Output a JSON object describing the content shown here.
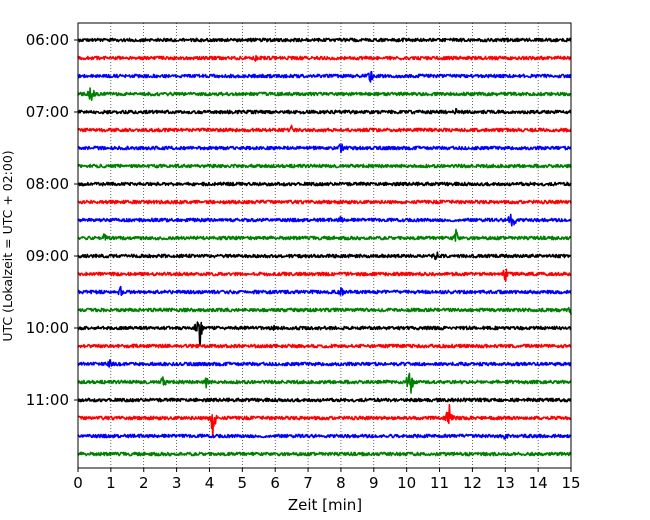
{
  "chart_data": {
    "type": "line",
    "xlabel": "Zeit  [min]",
    "ylabel": "UTC (Lokalzeit = UTC + 02:00)",
    "xlim": [
      0,
      15
    ],
    "x_ticks": [
      "0",
      "1",
      "2",
      "3",
      "4",
      "5",
      "6",
      "7",
      "8",
      "9",
      "10",
      "11",
      "12",
      "13",
      "14",
      "15"
    ],
    "y_ticks": [
      "06:00",
      "07:00",
      "08:00",
      "09:00",
      "10:00",
      "11:00"
    ],
    "start_time": "06:00",
    "row_interval_minutes": 15,
    "vertical_grid": "dotted",
    "trace_colors": [
      "#000000",
      "#ff0000",
      "#0000ff",
      "#008000"
    ],
    "events": [
      {
        "row": 1,
        "minute": 5.4,
        "amplitude": 0.25
      },
      {
        "row": 2,
        "minute": 8.9,
        "amplitude": 0.4
      },
      {
        "row": 3,
        "minute": 0.4,
        "amplitude": 0.6
      },
      {
        "row": 4,
        "minute": 11.5,
        "amplitude": 0.25
      },
      {
        "row": 5,
        "minute": 6.5,
        "amplitude": 0.25
      },
      {
        "row": 6,
        "minute": 8.0,
        "amplitude": 0.35
      },
      {
        "row": 10,
        "minute": 8.0,
        "amplitude": 0.3
      },
      {
        "row": 10,
        "minute": 13.2,
        "amplitude": 0.95
      },
      {
        "row": 11,
        "minute": 0.8,
        "amplitude": 0.4
      },
      {
        "row": 11,
        "minute": 11.5,
        "amplitude": 0.55
      },
      {
        "row": 12,
        "minute": 10.9,
        "amplitude": 0.35
      },
      {
        "row": 13,
        "minute": 13.0,
        "amplitude": 0.5
      },
      {
        "row": 14,
        "minute": 1.3,
        "amplitude": 0.35
      },
      {
        "row": 14,
        "minute": 8.0,
        "amplitude": 0.35
      },
      {
        "row": 15,
        "minute": 15.0,
        "amplitude": 0.35
      },
      {
        "row": 16,
        "minute": 3.7,
        "amplitude": 1.3
      },
      {
        "row": 16,
        "minute": 6.0,
        "amplitude": 0.3
      },
      {
        "row": 18,
        "minute": 1.0,
        "amplitude": 0.4
      },
      {
        "row": 19,
        "minute": 2.6,
        "amplitude": 0.45
      },
      {
        "row": 19,
        "minute": 3.9,
        "amplitude": 0.45
      },
      {
        "row": 19,
        "minute": 10.1,
        "amplitude": 1.0
      },
      {
        "row": 21,
        "minute": 4.1,
        "amplitude": 1.1
      },
      {
        "row": 21,
        "minute": 11.3,
        "amplitude": 1.0
      },
      {
        "row": 22,
        "minute": 13.0,
        "amplitude": 0.3
      }
    ]
  }
}
